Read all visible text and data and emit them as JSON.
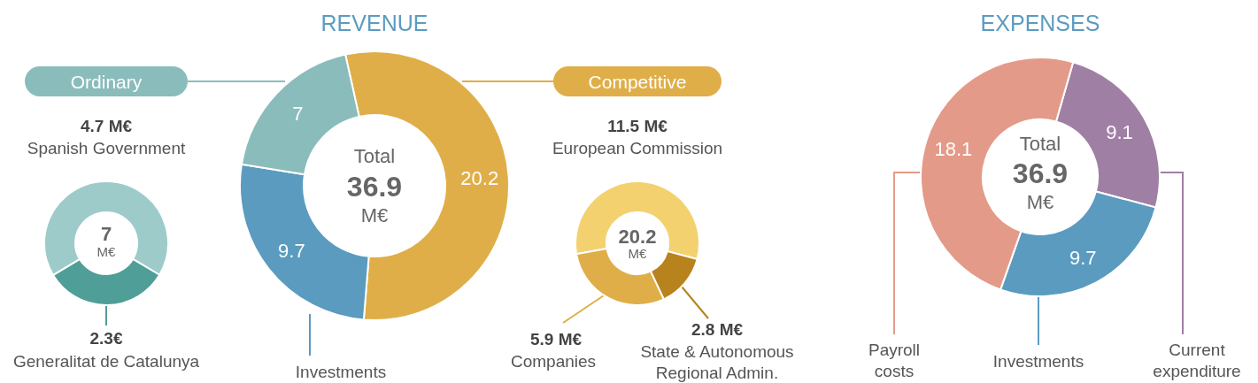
{
  "chart_data": [
    {
      "type": "donut",
      "categories": [
        "Spanish Government",
        "Generalitat de Catalunya"
      ],
      "values": [
        4.7,
        2.3
      ],
      "colors": [
        "#9dcbc9",
        "#4f9e97"
      ],
      "value_labels": [
        "4.7 M€",
        "2.3€"
      ],
      "annotations": [
        "7",
        "M€"
      ]
    },
    {
      "type": "donut",
      "title": "REVENUE",
      "categories": [
        "Competitive",
        "Investments",
        "Ordinary"
      ],
      "values": [
        20.2,
        9.7,
        7
      ],
      "colors": [
        "#e0ae48",
        "#5a9bbf",
        "#8bbcbc"
      ],
      "data_labels": true,
      "annotations": [
        "Total",
        "36.9",
        "M€"
      ]
    },
    {
      "type": "donut",
      "categories": [
        "European Commission",
        "State & Autonomous\nRegional Admin.",
        "Companies"
      ],
      "values": [
        11.5,
        2.8,
        5.9
      ],
      "colors": [
        "#f3d16f",
        "#b8821c",
        "#dfae48"
      ],
      "value_labels": [
        "11.5 M€",
        "2.8 M€",
        "5.9 M€"
      ],
      "annotations": [
        "20.2",
        "M€"
      ]
    },
    {
      "type": "donut",
      "title": "EXPENSES",
      "categories": [
        "Current\nexpenditure",
        "Investments",
        "Payroll\ncosts"
      ],
      "values": [
        9.1,
        9.7,
        18.1
      ],
      "colors": [
        "#a07fa5",
        "#5a9bbf",
        "#e49a88"
      ],
      "data_labels": true,
      "annotations": [
        "Total",
        "36.9",
        "M€"
      ]
    }
  ]
}
